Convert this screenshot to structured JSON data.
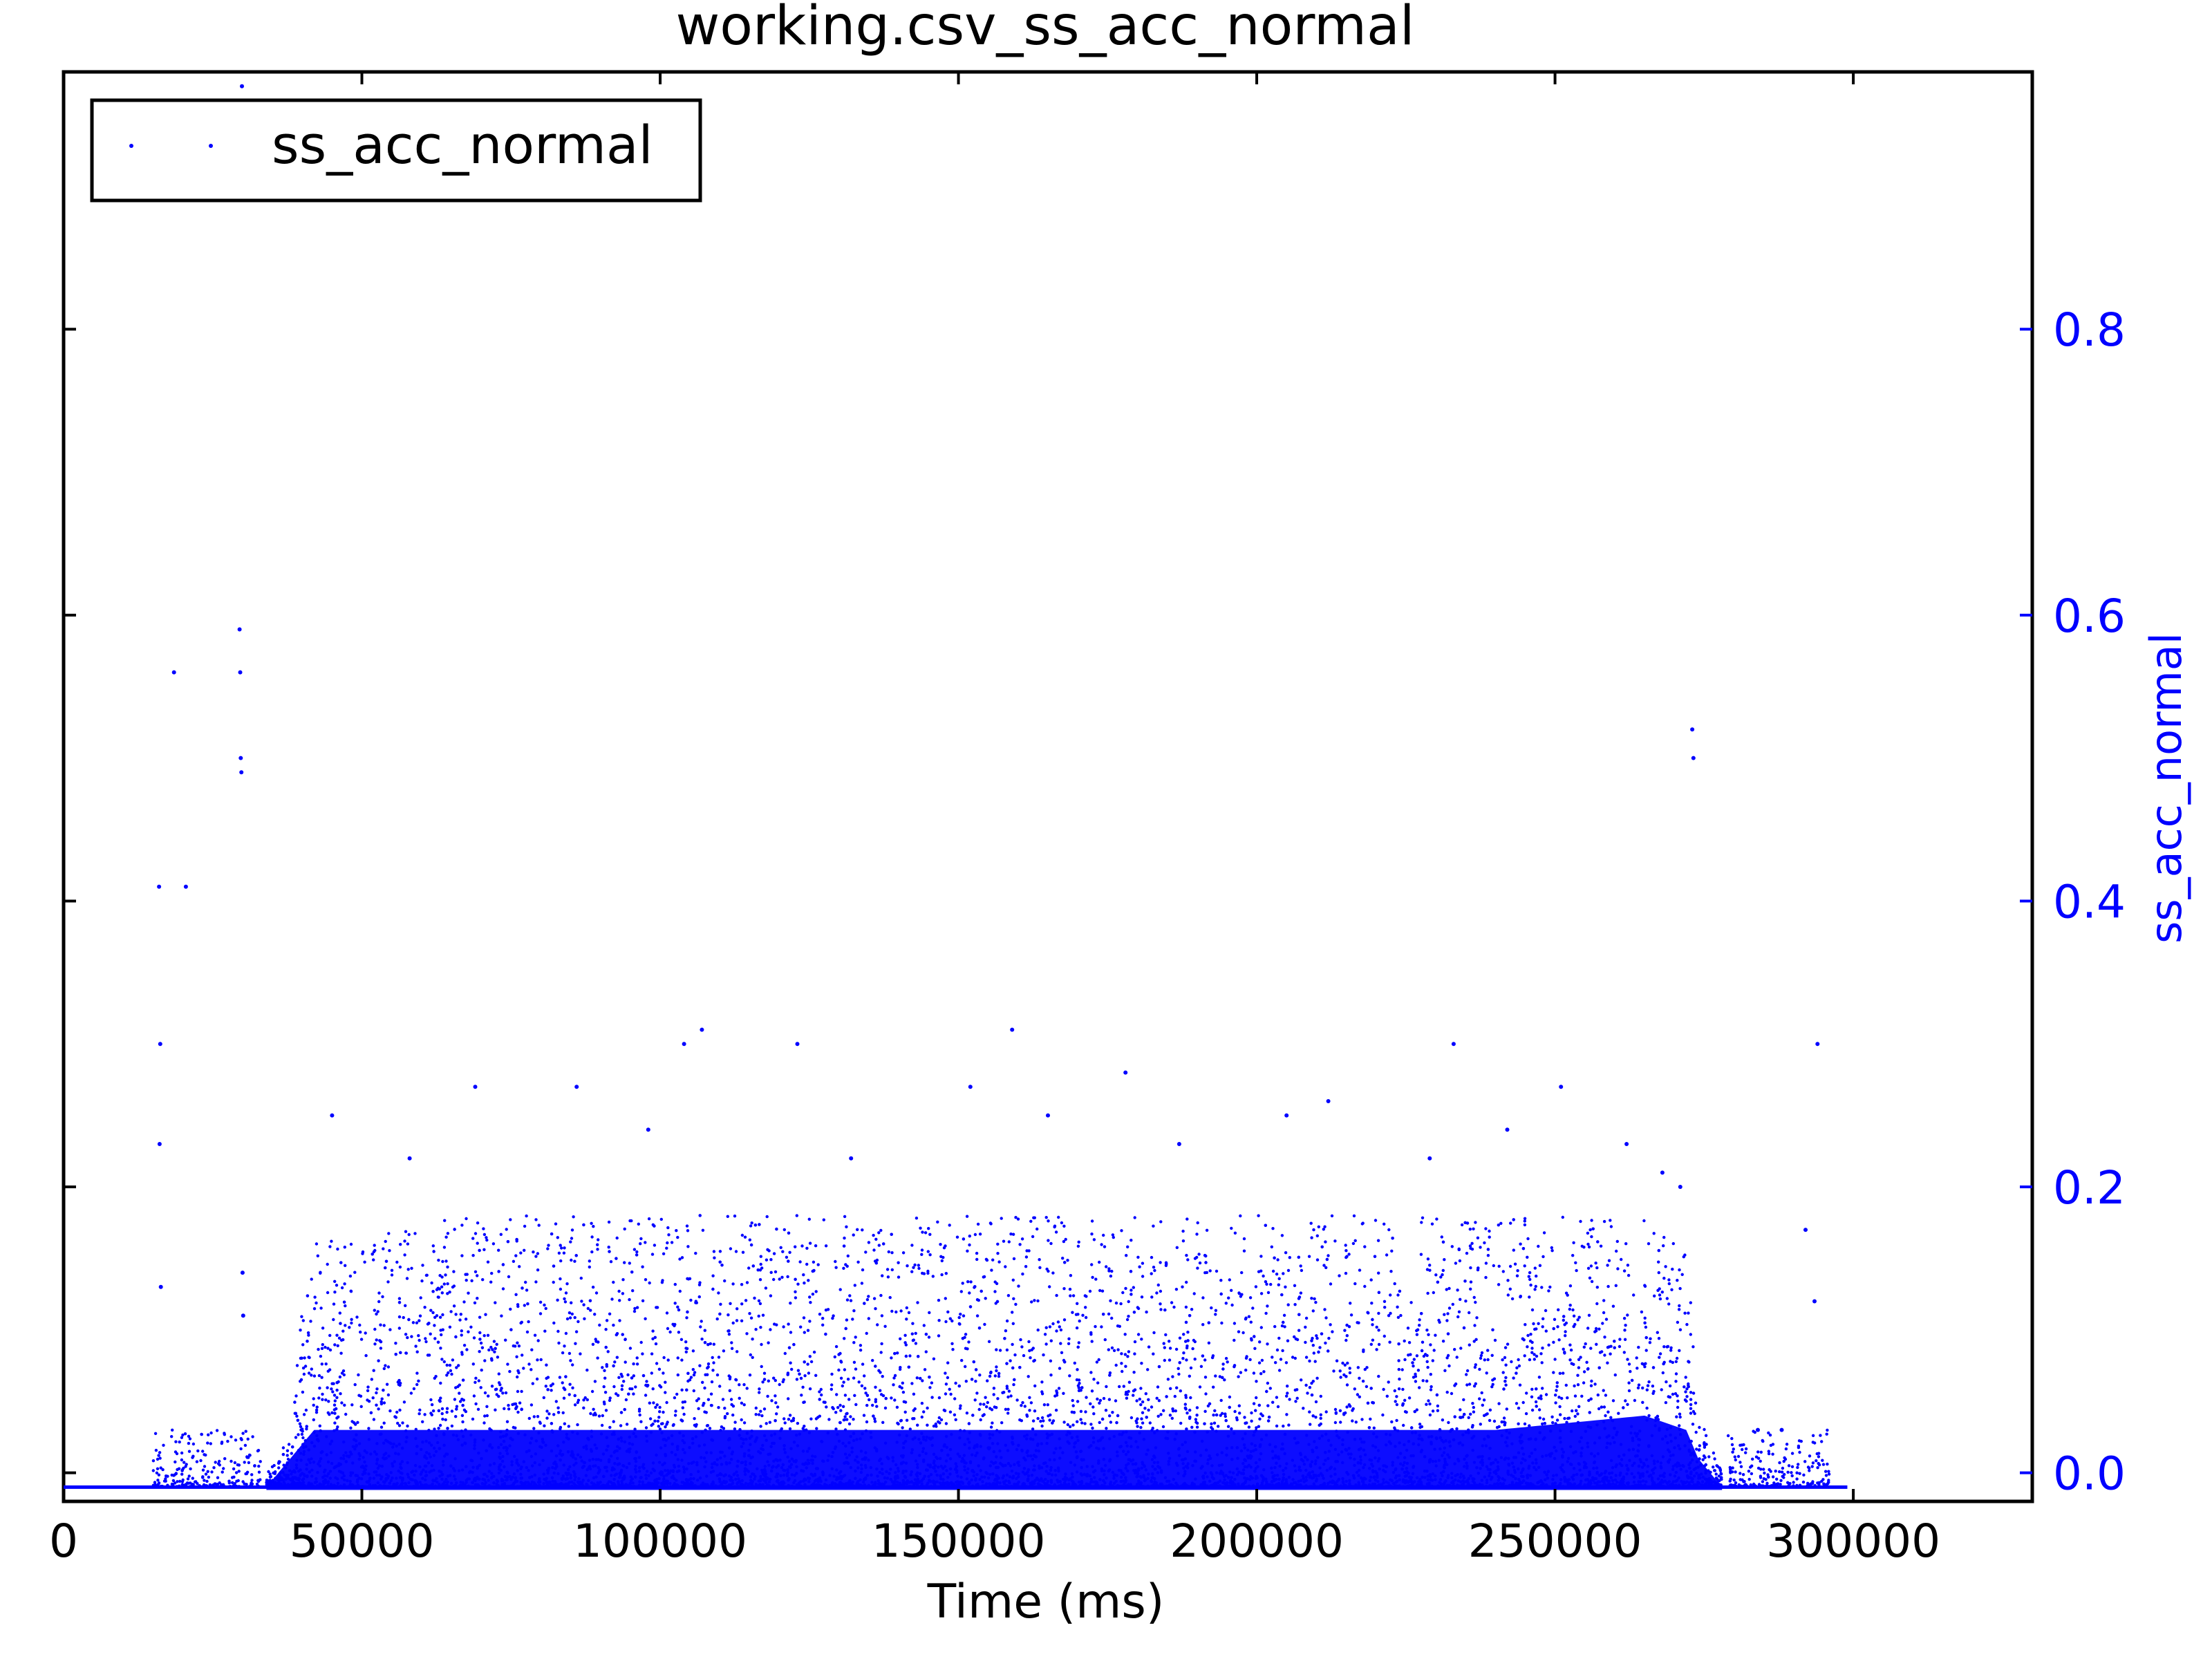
{
  "chart_data": {
    "type": "scatter",
    "title": "working.csv_ss_acc_normal",
    "xlabel": "Time (ms)",
    "ylabel": "ss_acc_normal",
    "xlim": [
      0,
      330000
    ],
    "ylim": [
      -0.02,
      0.98
    ],
    "y_axis_side": "right",
    "grid": false,
    "legend_position": "top-left",
    "series_color": "#0000ff",
    "x_ticks": [
      0,
      50000,
      100000,
      150000,
      200000,
      250000,
      300000
    ],
    "x_tick_labels": [
      "0",
      "50000",
      "100000",
      "150000",
      "200000",
      "250000",
      "300000"
    ],
    "y_ticks": [
      0.0,
      0.2,
      0.4,
      0.6,
      0.8
    ],
    "y_tick_labels": [
      "0.0",
      "0.2",
      "0.4",
      "0.6",
      "0.8"
    ],
    "series": [
      {
        "name": "ss_acc_normal",
        "baseline": {
          "x": [
            0,
            299000
          ],
          "y": -0.01
        },
        "points": [
          [
            16000,
            0.41
          ],
          [
            16200,
            0.3
          ],
          [
            16100,
            0.23
          ],
          [
            16300,
            0.13
          ],
          [
            18500,
            0.56
          ],
          [
            20500,
            0.41
          ],
          [
            29500,
            0.59
          ],
          [
            29600,
            0.56
          ],
          [
            29700,
            0.5
          ],
          [
            29800,
            0.49
          ],
          [
            29900,
            0.97
          ],
          [
            30000,
            0.14
          ],
          [
            30100,
            0.11
          ],
          [
            107000,
            0.31
          ],
          [
            104000,
            0.3
          ],
          [
            123000,
            0.3
          ],
          [
            159000,
            0.31
          ],
          [
            178000,
            0.28
          ],
          [
            233000,
            0.3
          ],
          [
            273000,
            0.52
          ],
          [
            273200,
            0.5
          ],
          [
            294000,
            0.3
          ],
          [
            293500,
            0.12
          ],
          [
            292000,
            0.17
          ],
          [
            288000,
            0.03
          ],
          [
            284000,
            0.03
          ],
          [
            69000,
            0.27
          ],
          [
            86000,
            0.27
          ],
          [
            212000,
            0.26
          ],
          [
            152000,
            0.27
          ],
          [
            251000,
            0.27
          ],
          [
            58000,
            0.22
          ],
          [
            45000,
            0.25
          ],
          [
            98000,
            0.24
          ],
          [
            132000,
            0.22
          ],
          [
            165000,
            0.25
          ],
          [
            187000,
            0.23
          ],
          [
            205000,
            0.25
          ],
          [
            229000,
            0.22
          ],
          [
            242000,
            0.24
          ],
          [
            262000,
            0.23
          ],
          [
            271000,
            0.2
          ],
          [
            268000,
            0.21
          ]
        ],
        "density_envelope": {
          "x": [
            34000,
            36000,
            38000,
            40000,
            42000,
            60000,
            90000,
            120000,
            150000,
            180000,
            210000,
            240000,
            265000,
            272000,
            274000,
            276000,
            278000
          ],
          "dense_band_top": [
            0.0,
            0.01,
            0.02,
            0.03,
            0.04,
            0.04,
            0.04,
            0.04,
            0.04,
            0.04,
            0.04,
            0.04,
            0.05,
            0.04,
            0.02,
            0.01,
            0.0
          ],
          "sparse_band_top": [
            0.0,
            0.01,
            0.03,
            0.12,
            0.16,
            0.18,
            0.18,
            0.18,
            0.18,
            0.18,
            0.18,
            0.18,
            0.18,
            0.16,
            0.05,
            0.02,
            0.0
          ]
        }
      }
    ]
  }
}
